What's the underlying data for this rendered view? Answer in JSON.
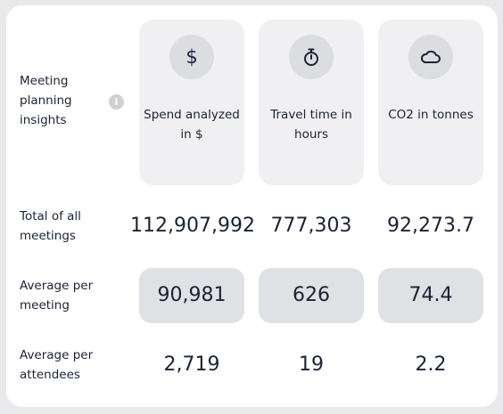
{
  "header": {
    "title": "Meeting planning insights"
  },
  "columns": [
    {
      "icon": "dollar-icon",
      "title": "Spend analyzed in $"
    },
    {
      "icon": "stopwatch-icon",
      "title": "Travel time in hours"
    },
    {
      "icon": "cloud-icon",
      "title": "CO2 in tonnes"
    }
  ],
  "rows": [
    {
      "label": "Total of all meetings",
      "values": [
        "112,907,992",
        "777,303",
        "92,273.7"
      ]
    },
    {
      "label": "Average per meeting",
      "values": [
        "90,981",
        "626",
        "74.4"
      ]
    },
    {
      "label": "Average per attendees",
      "values": [
        "2,719",
        "19",
        "2.2"
      ]
    }
  ],
  "colors": {
    "card": "#ffffff",
    "column_bg": "#f0f0f2",
    "icon_bg": "#dcdde1",
    "highlight_row": "#e0e1e5",
    "text": "#1c2235"
  }
}
